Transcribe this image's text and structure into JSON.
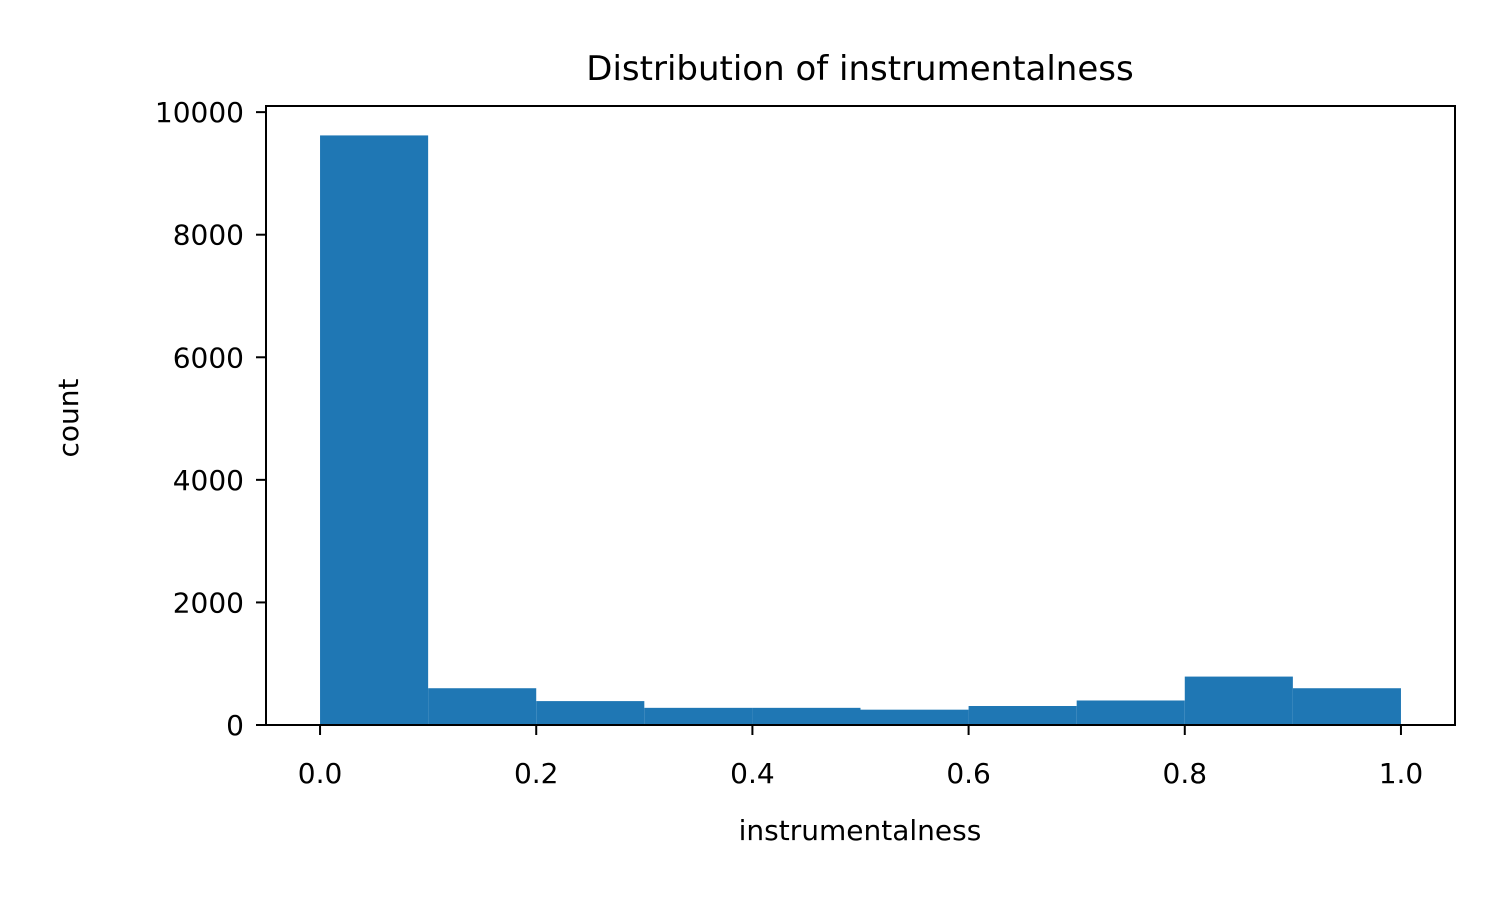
{
  "chart_data": {
    "type": "bar",
    "title": "Distribution of instrumentalness",
    "xlabel": "instrumentalness",
    "ylabel": "count",
    "bin_edges": [
      0.0,
      0.1,
      0.2,
      0.3,
      0.4,
      0.5,
      0.6,
      0.7,
      0.8,
      0.9,
      1.0
    ],
    "values": [
      9620,
      600,
      390,
      280,
      280,
      250,
      310,
      400,
      790,
      600
    ],
    "xlim": [
      -0.05,
      1.05
    ],
    "ylim": [
      0,
      10100
    ],
    "xticks": [
      0.0,
      0.2,
      0.4,
      0.6,
      0.8,
      1.0
    ],
    "xtick_labels": [
      "0.0",
      "0.2",
      "0.4",
      "0.6",
      "0.8",
      "1.0"
    ],
    "yticks": [
      0,
      2000,
      4000,
      6000,
      8000,
      10000
    ],
    "ytick_labels": [
      "0",
      "2000",
      "4000",
      "6000",
      "8000",
      "10000"
    ],
    "bar_color": "#1f77b4",
    "grid": false,
    "legend": "none"
  }
}
